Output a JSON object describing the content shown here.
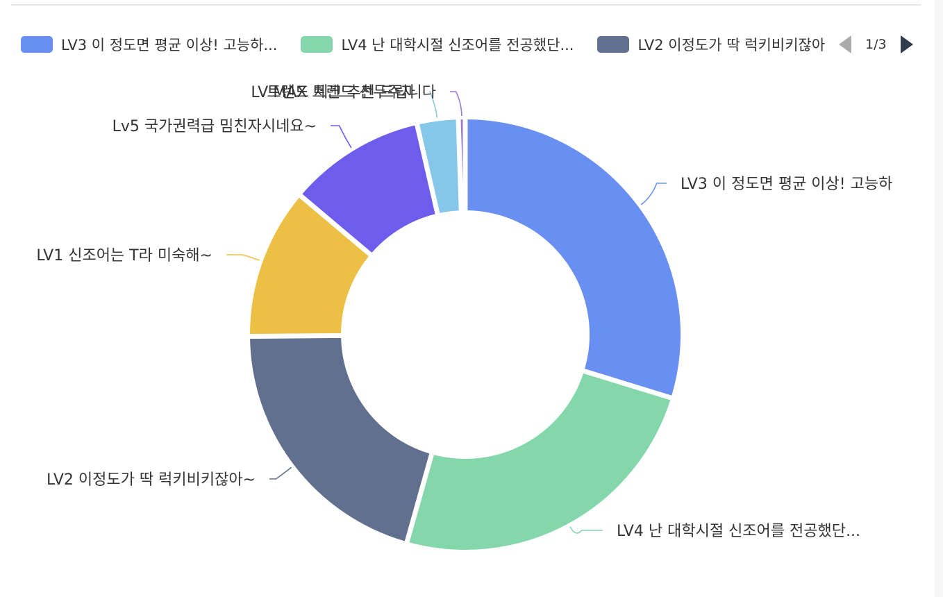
{
  "chart_data": {
    "type": "pie",
    "donut": true,
    "legend_position": "top-left",
    "categories": [
      "LV3 이 정도면 평균 이상! 고능하",
      "LV4 난 대학시절 신조어를 전공했단...",
      "LV2 이정도가 딱 럭키비키잖아~",
      "LV1 신조어는 T라 미숙해~",
      "Lv5 국가권력급 밈친자시네요~",
      "LV MAX 트렌드 선두주자",
      "트렌드 체크 추천 드립니다"
    ],
    "values": [
      29,
      24,
      20,
      11,
      10,
      3,
      0.5
    ],
    "colors": [
      "#6a8ff2",
      "#83d7ab",
      "#627090",
      "#ecbf45",
      "#6c5ded",
      "#86c6e8",
      "#9b78d6"
    ],
    "labels": [
      "LV3 이 정도면 평균 이상! 고능하",
      "LV4 난 대학시절 신조어를 전공했단...",
      "LV2 이정도가 딱 럭키비키잖아~",
      "LV1 신조어는 T라 미숙해~",
      "Lv5 국가권력급 밈친자시네요~",
      "LV MAX 트렌드 선두주자",
      "트렌드 체크 추천 드립니다"
    ]
  },
  "legend": {
    "items": [
      {
        "label": "LV3 이 정도면 평균 이상! 고능하...",
        "color": "#6a8ff2"
      },
      {
        "label": "LV4 난 대학시절 신조어를 전공했단...",
        "color": "#83d7ab"
      },
      {
        "label": "LV2 이정도가 딱 럭키비키잖아~",
        "color": "#627090"
      }
    ],
    "page": "1/3",
    "prev_color": "#aaaaaa",
    "next_color": "#2f3d4d"
  }
}
